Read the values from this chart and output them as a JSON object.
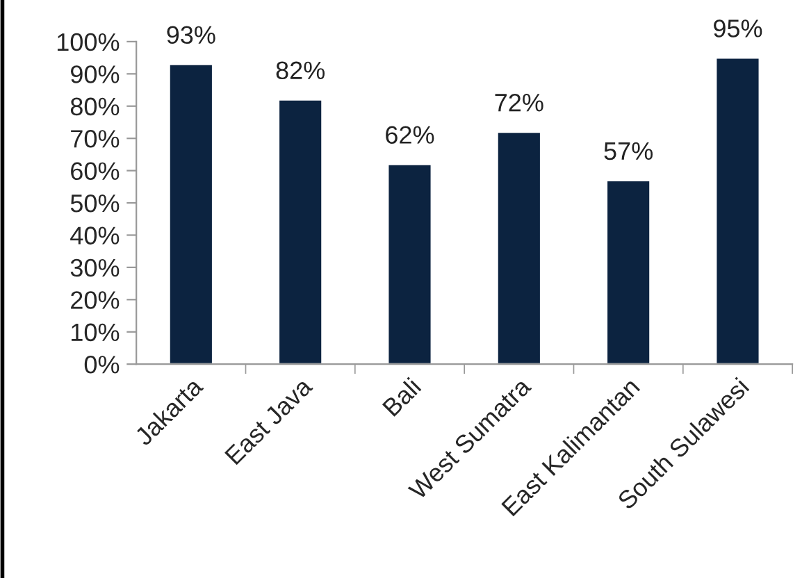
{
  "chart_data": {
    "type": "bar",
    "categories": [
      "Jakarta",
      "East Java",
      "Bali",
      "West Sumatra",
      "East Kalimantan",
      "South Sulawesi"
    ],
    "values": [
      93,
      82,
      62,
      72,
      57,
      95
    ],
    "value_labels": [
      "93%",
      "82%",
      "62%",
      "72%",
      "57%",
      "95%"
    ],
    "color": "#0c2340",
    "ylim": [
      0,
      100
    ],
    "yticks": [
      {
        "value": 0,
        "label": "0%"
      },
      {
        "value": 10,
        "label": "10%"
      },
      {
        "value": 20,
        "label": "20%"
      },
      {
        "value": 30,
        "label": "30%"
      },
      {
        "value": 40,
        "label": "40%"
      },
      {
        "value": 50,
        "label": "50%"
      },
      {
        "value": 60,
        "label": "60%"
      },
      {
        "value": 70,
        "label": "70%"
      },
      {
        "value": 80,
        "label": "80%"
      },
      {
        "value": 90,
        "label": "90%"
      },
      {
        "value": 100,
        "label": "100%"
      }
    ],
    "grid": false,
    "legend": false
  }
}
